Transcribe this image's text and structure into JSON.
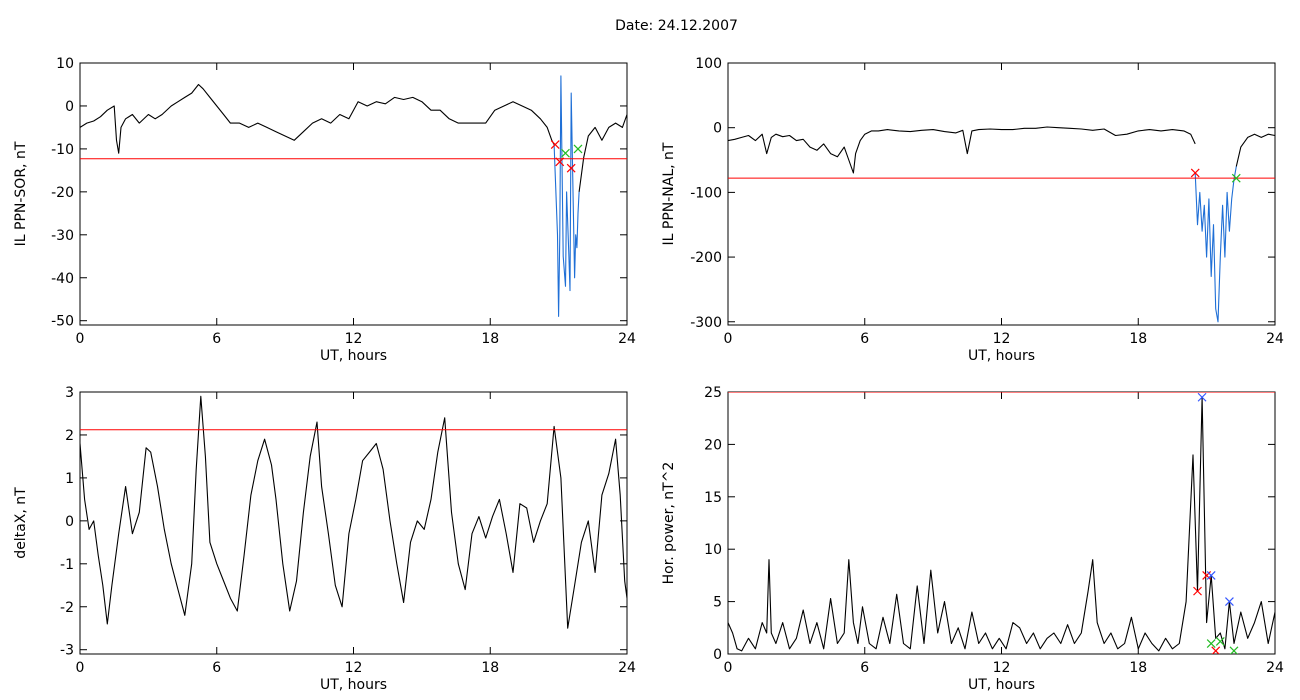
{
  "figure": {
    "title": "Date:  24.12.2007"
  },
  "chart_data": [
    {
      "type": "line",
      "xlabel": "UT, hours",
      "ylabel": "IL PPN-SOR, nT",
      "xlim": [
        0,
        24
      ],
      "ylim": [
        -51,
        10
      ],
      "xticks": [
        0,
        6,
        12,
        18,
        24
      ],
      "yticks": [
        10,
        0,
        -10,
        -20,
        -30,
        -40,
        -50
      ],
      "threshold": -12.3,
      "series": [
        {
          "color": "#000000",
          "x": [
            0,
            0.3,
            0.6,
            0.9,
            1.2,
            1.5,
            1.6,
            1.7,
            1.8,
            2.0,
            2.3,
            2.6,
            3.0,
            3.3,
            3.6,
            4.0,
            4.3,
            4.6,
            4.9,
            5.2,
            5.4,
            5.7,
            6.0,
            6.3,
            6.6,
            7.0,
            7.4,
            7.8,
            8.2,
            8.6,
            9.0,
            9.4,
            9.8,
            10.2,
            10.6,
            11.0,
            11.4,
            11.8,
            12.2,
            12.6,
            13.0,
            13.4,
            13.8,
            14.2,
            14.6,
            15.0,
            15.4,
            15.8,
            16.2,
            16.6,
            17.0,
            17.4,
            17.8,
            18.2,
            18.6,
            19.0,
            19.4,
            19.8,
            20.2,
            20.5,
            20.7,
            20.8
          ],
          "y": [
            -5,
            -4,
            -3.5,
            -2.5,
            -1,
            0,
            -8,
            -11,
            -5,
            -3,
            -2,
            -4,
            -2,
            -3,
            -2,
            0,
            1,
            2,
            3,
            5,
            4,
            2,
            0,
            -2,
            -4,
            -4,
            -5,
            -4,
            -5,
            -6,
            -7,
            -8,
            -6,
            -4,
            -3,
            -4,
            -2,
            -3,
            1,
            0,
            1,
            0.5,
            2,
            1.5,
            2,
            1,
            -1,
            -1,
            -3,
            -4,
            -4,
            -4,
            -4,
            -1,
            0,
            1,
            0,
            -1,
            -3,
            -5,
            -8,
            -9
          ]
        },
        {
          "color": "#000000",
          "x": [
            21.9,
            22.1,
            22.3,
            22.6,
            22.9,
            23.2,
            23.5,
            23.8,
            24.0
          ],
          "y": [
            -20,
            -12,
            -7,
            -5,
            -8,
            -5,
            -4,
            -5,
            -2
          ]
        },
        {
          "color": "#1f6fd6",
          "x": [
            20.8,
            20.95,
            21.0,
            21.05,
            21.1,
            21.2,
            21.3,
            21.35,
            21.45,
            21.5,
            21.55,
            21.65,
            21.7,
            21.75,
            21.8,
            21.85,
            21.9
          ],
          "y": [
            -9,
            -30,
            -49,
            -30,
            7,
            -35,
            -42,
            -20,
            -35,
            -43,
            3,
            -25,
            -40,
            -30,
            -33,
            -25,
            -20
          ]
        }
      ],
      "markers": [
        {
          "x": 20.85,
          "y": -9,
          "color": "#ff0000"
        },
        {
          "x": 21.05,
          "y": -13,
          "color": "#ff0000"
        },
        {
          "x": 21.55,
          "y": -14.5,
          "color": "#ff0000"
        },
        {
          "x": 21.3,
          "y": -11,
          "color": "#22bb22"
        },
        {
          "x": 21.85,
          "y": -10,
          "color": "#22bb22"
        }
      ]
    },
    {
      "type": "line",
      "xlabel": "UT, hours",
      "ylabel": "IL PPN-NAL, nT",
      "xlim": [
        0,
        24
      ],
      "ylim": [
        -305,
        100
      ],
      "xticks": [
        0,
        6,
        12,
        18,
        24
      ],
      "yticks": [
        100,
        0,
        -100,
        -200,
        -300
      ],
      "threshold": -78,
      "series": [
        {
          "color": "#000000",
          "x": [
            0,
            0.3,
            0.6,
            0.9,
            1.2,
            1.5,
            1.7,
            1.9,
            2.1,
            2.4,
            2.7,
            3.0,
            3.3,
            3.6,
            3.9,
            4.2,
            4.5,
            4.8,
            5.1,
            5.3,
            5.5,
            5.6,
            5.8,
            6.0,
            6.3,
            6.6,
            7.0,
            7.5,
            8.0,
            8.5,
            9.0,
            9.5,
            10.0,
            10.3,
            10.5,
            10.7,
            11.0,
            11.5,
            12.0,
            12.5,
            13.0,
            13.5,
            14.0,
            14.5,
            15.0,
            15.5,
            16.0,
            16.5,
            17.0,
            17.5,
            18.0,
            18.5,
            19.0,
            19.5,
            20.0,
            20.3,
            20.5
          ],
          "y": [
            -20,
            -18,
            -15,
            -12,
            -20,
            -10,
            -40,
            -15,
            -10,
            -14,
            -12,
            -20,
            -18,
            -30,
            -35,
            -25,
            -40,
            -45,
            -30,
            -50,
            -70,
            -40,
            -20,
            -10,
            -5,
            -5,
            -3,
            -5,
            -6,
            -4,
            -3,
            -6,
            -8,
            -4,
            -40,
            -5,
            -3,
            -2,
            -3,
            -3,
            -1,
            -1,
            1,
            0,
            -1,
            -2,
            -4,
            -2,
            -12,
            -10,
            -5,
            -3,
            -5,
            -3,
            -5,
            -10,
            -25
          ]
        },
        {
          "color": "#000000",
          "x": [
            22.3,
            22.5,
            22.8,
            23.1,
            23.4,
            23.7,
            24.0
          ],
          "y": [
            -60,
            -30,
            -15,
            -10,
            -15,
            -10,
            -12
          ]
        },
        {
          "color": "#1f6fd6",
          "x": [
            20.5,
            20.6,
            20.7,
            20.8,
            20.9,
            21.0,
            21.1,
            21.2,
            21.3,
            21.4,
            21.5,
            21.6,
            21.7,
            21.8,
            21.9,
            22.0,
            22.1,
            22.2,
            22.3
          ],
          "y": [
            -70,
            -150,
            -100,
            -160,
            -120,
            -200,
            -110,
            -230,
            -150,
            -280,
            -300,
            -200,
            -120,
            -200,
            -100,
            -160,
            -110,
            -80,
            -60
          ]
        }
      ],
      "markers": [
        {
          "x": 20.5,
          "y": -70,
          "color": "#ff0000"
        },
        {
          "x": 22.3,
          "y": -78,
          "color": "#22bb22"
        }
      ]
    },
    {
      "type": "line",
      "xlabel": "UT, hours",
      "ylabel": "deltaX, nT",
      "xlim": [
        0,
        24
      ],
      "ylim": [
        -3.1,
        3.0
      ],
      "xticks": [
        0,
        6,
        12,
        18,
        24
      ],
      "yticks": [
        3,
        2,
        1,
        0,
        -1,
        -2,
        -3
      ],
      "threshold": 2.12,
      "series": [
        {
          "color": "#000000",
          "x": [
            0,
            0.2,
            0.4,
            0.6,
            0.8,
            1.0,
            1.2,
            1.4,
            1.7,
            2.0,
            2.3,
            2.6,
            2.9,
            3.1,
            3.4,
            3.7,
            4.0,
            4.3,
            4.6,
            4.9,
            5.1,
            5.3,
            5.5,
            5.7,
            6.0,
            6.3,
            6.6,
            6.9,
            7.2,
            7.5,
            7.8,
            8.1,
            8.4,
            8.6,
            8.9,
            9.2,
            9.5,
            9.8,
            10.1,
            10.4,
            10.6,
            10.9,
            11.2,
            11.5,
            11.8,
            12.1,
            12.4,
            12.7,
            13.0,
            13.3,
            13.6,
            13.9,
            14.2,
            14.5,
            14.8,
            15.1,
            15.4,
            15.7,
            16.0,
            16.3,
            16.6,
            16.9,
            17.2,
            17.5,
            17.8,
            18.1,
            18.4,
            18.7,
            19.0,
            19.3,
            19.6,
            19.9,
            20.2,
            20.5,
            20.8,
            21.1,
            21.4,
            21.7,
            22.0,
            22.3,
            22.6,
            22.9,
            23.2,
            23.5,
            23.7,
            23.9,
            24.0
          ],
          "y": [
            1.8,
            0.5,
            -0.2,
            0.0,
            -0.8,
            -1.5,
            -2.4,
            -1.5,
            -0.3,
            0.8,
            -0.3,
            0.2,
            1.7,
            1.6,
            0.8,
            -0.2,
            -1.0,
            -1.6,
            -2.2,
            -1.0,
            1.2,
            2.9,
            1.5,
            -0.5,
            -1.0,
            -1.4,
            -1.8,
            -2.1,
            -0.8,
            0.6,
            1.4,
            1.9,
            1.3,
            0.5,
            -1.0,
            -2.1,
            -1.4,
            0.2,
            1.5,
            2.3,
            0.8,
            -0.3,
            -1.5,
            -2.0,
            -0.3,
            0.5,
            1.4,
            1.6,
            1.8,
            1.2,
            0.0,
            -1.0,
            -1.9,
            -0.5,
            0.0,
            -0.2,
            0.5,
            1.6,
            2.4,
            0.2,
            -1.0,
            -1.6,
            -0.3,
            0.1,
            -0.4,
            0.1,
            0.5,
            -0.3,
            -1.2,
            0.4,
            0.3,
            -0.5,
            0.0,
            0.4,
            2.2,
            1.0,
            -2.5,
            -1.5,
            -0.5,
            0.0,
            -1.2,
            0.6,
            1.1,
            1.9,
            0.6,
            -1.4,
            -1.8
          ]
        }
      ],
      "markers": []
    },
    {
      "type": "line",
      "xlabel": "UT, hours",
      "ylabel": "Hor. power, nT^2",
      "xlim": [
        0,
        24
      ],
      "ylim": [
        0,
        25
      ],
      "xticks": [
        0,
        6,
        12,
        18,
        24
      ],
      "yticks": [
        0,
        5,
        10,
        15,
        20,
        25
      ],
      "threshold": 25,
      "series": [
        {
          "color": "#000000",
          "x": [
            0,
            0.2,
            0.4,
            0.6,
            0.9,
            1.2,
            1.5,
            1.7,
            1.8,
            1.9,
            2.1,
            2.4,
            2.7,
            3.0,
            3.3,
            3.6,
            3.9,
            4.2,
            4.5,
            4.8,
            5.1,
            5.3,
            5.5,
            5.7,
            5.9,
            6.2,
            6.5,
            6.8,
            7.1,
            7.4,
            7.7,
            8.0,
            8.3,
            8.6,
            8.9,
            9.2,
            9.5,
            9.8,
            10.1,
            10.4,
            10.7,
            11.0,
            11.3,
            11.6,
            11.9,
            12.2,
            12.5,
            12.8,
            13.1,
            13.4,
            13.7,
            14.0,
            14.3,
            14.6,
            14.9,
            15.2,
            15.5,
            15.8,
            16.0,
            16.2,
            16.5,
            16.8,
            17.1,
            17.4,
            17.7,
            18.0,
            18.3,
            18.6,
            18.9,
            19.2,
            19.5,
            19.8,
            20.1,
            20.4,
            20.6,
            20.8,
            21.0,
            21.2,
            21.4,
            21.6,
            21.8,
            22.0,
            22.2,
            22.5,
            22.8,
            23.1,
            23.4,
            23.7,
            24.0
          ],
          "y": [
            3,
            2,
            0.5,
            0.3,
            1.5,
            0.5,
            3,
            2,
            9,
            2,
            1,
            3,
            0.5,
            1.5,
            4.2,
            1,
            3,
            0.5,
            5.3,
            1,
            2,
            9,
            3,
            1,
            4.5,
            1,
            0.5,
            3.5,
            1,
            5.7,
            1,
            0.5,
            6.5,
            1,
            8,
            2,
            5,
            1,
            2.5,
            0.5,
            4,
            1,
            2,
            0.5,
            1.5,
            0.5,
            3,
            2.5,
            1,
            2,
            0.5,
            1.5,
            2,
            1,
            2.8,
            1,
            2,
            6,
            9,
            3,
            1,
            2,
            0.5,
            1,
            3.5,
            0.5,
            2,
            1,
            0.3,
            1.5,
            0.5,
            1,
            5,
            19,
            6,
            24.5,
            3,
            7.5,
            1.5,
            2,
            0.5,
            5,
            1,
            4,
            1.5,
            3,
            5,
            1,
            4
          ]
        }
      ],
      "markers": [
        {
          "x": 20.6,
          "y": 6,
          "color": "#ff0000"
        },
        {
          "x": 21.0,
          "y": 7.5,
          "color": "#ff0000"
        },
        {
          "x": 21.4,
          "y": 0.3,
          "color": "#ff0000"
        },
        {
          "x": 20.8,
          "y": 24.5,
          "color": "#3355ff"
        },
        {
          "x": 21.2,
          "y": 7.5,
          "color": "#3355ff"
        },
        {
          "x": 22.0,
          "y": 5,
          "color": "#3355ff"
        },
        {
          "x": 21.2,
          "y": 1,
          "color": "#22bb22"
        },
        {
          "x": 21.6,
          "y": 1.2,
          "color": "#22bb22"
        },
        {
          "x": 22.2,
          "y": 0.3,
          "color": "#22bb22"
        }
      ]
    }
  ]
}
